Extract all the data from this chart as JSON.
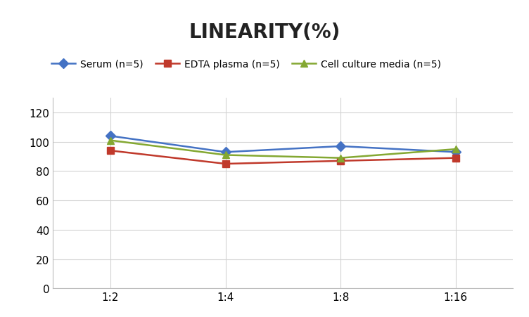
{
  "title": "LINEARITY(%)",
  "x_labels": [
    "1:2",
    "1:4",
    "1:8",
    "1:16"
  ],
  "x_positions": [
    0,
    1,
    2,
    3
  ],
  "series": [
    {
      "name": "Serum (n=5)",
      "values": [
        104,
        93,
        97,
        93
      ],
      "color": "#4472C4",
      "marker": "D",
      "marker_size": 7,
      "linewidth": 1.8
    },
    {
      "name": "EDTA plasma (n=5)",
      "values": [
        94,
        85,
        87,
        89
      ],
      "color": "#C0392B",
      "marker": "s",
      "marker_size": 7,
      "linewidth": 1.8
    },
    {
      "name": "Cell culture media (n=5)",
      "values": [
        101,
        91,
        89,
        95
      ],
      "color": "#84A832",
      "marker": "^",
      "marker_size": 7,
      "linewidth": 1.8
    }
  ],
  "ylim": [
    0,
    130
  ],
  "yticks": [
    0,
    20,
    40,
    60,
    80,
    100,
    120
  ],
  "grid_color": "#D3D3D3",
  "background_color": "#FFFFFF",
  "title_fontsize": 20,
  "title_fontweight": "bold",
  "legend_fontsize": 10,
  "tick_fontsize": 11
}
